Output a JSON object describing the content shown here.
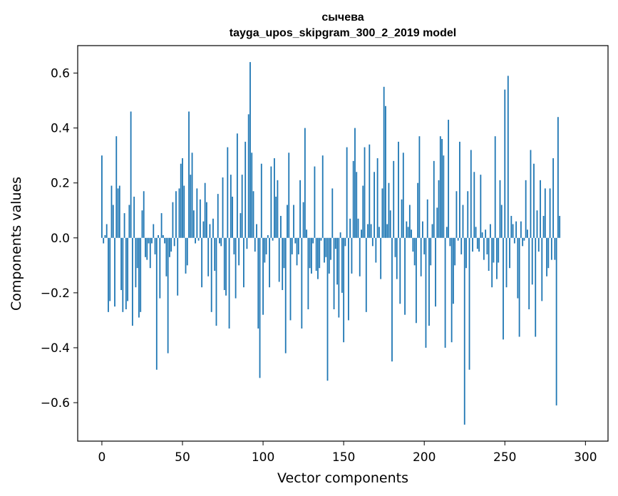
{
  "chart_data": {
    "type": "bar",
    "title": "сычева",
    "subtitle": "tayga_upos_skipgram_300_2_2019 model",
    "xlabel": "Vector components",
    "ylabel": "Components values",
    "xlim": [
      -15,
      314
    ],
    "ylim": [
      -0.74,
      0.7
    ],
    "xticks": [
      0,
      50,
      100,
      150,
      200,
      250,
      300
    ],
    "yticks": [
      -0.6,
      -0.4,
      -0.2,
      0.0,
      0.2,
      0.4,
      0.6
    ],
    "xtick_labels": [
      "0",
      "50",
      "100",
      "150",
      "200",
      "250",
      "300"
    ],
    "ytick_labels": [
      "−0.6",
      "−0.4",
      "−0.2",
      "0.0",
      "0.2",
      "0.4",
      "0.6"
    ],
    "bar_color": "#1f77b4",
    "grid": false,
    "values": [
      0.3,
      -0.02,
      0.01,
      0.05,
      -0.27,
      -0.23,
      0.19,
      0.12,
      -0.25,
      0.37,
      0.18,
      0.19,
      -0.19,
      -0.27,
      0.09,
      -0.26,
      -0.23,
      0.12,
      0.46,
      -0.32,
      0.15,
      -0.18,
      -0.11,
      -0.29,
      -0.27,
      0.1,
      0.17,
      -0.07,
      -0.08,
      -0.02,
      -0.11,
      -0.02,
      0.05,
      -0.06,
      -0.48,
      0.01,
      -0.22,
      0.09,
      0.01,
      -0.02,
      -0.14,
      -0.42,
      -0.07,
      -0.05,
      0.13,
      -0.03,
      0.17,
      -0.21,
      0.18,
      0.27,
      0.29,
      0.19,
      -0.13,
      -0.1,
      0.46,
      0.23,
      0.31,
      0.1,
      -0.02,
      0.18,
      -0.01,
      0.14,
      -0.18,
      0.06,
      0.2,
      0.13,
      -0.14,
      0.05,
      -0.27,
      0.07,
      -0.12,
      -0.32,
      0.16,
      -0.02,
      -0.03,
      0.22,
      -0.19,
      -0.21,
      0.33,
      -0.33,
      0.23,
      0.15,
      -0.06,
      -0.22,
      0.38,
      -0.1,
      0.09,
      0.23,
      -0.18,
      0.35,
      -0.04,
      0.45,
      0.64,
      0.31,
      0.17,
      -0.05,
      0.05,
      -0.33,
      -0.51,
      0.27,
      -0.28,
      -0.09,
      -0.06,
      0.01,
      -0.18,
      0.26,
      -0.01,
      0.29,
      0.15,
      0.21,
      -0.16,
      0.08,
      -0.19,
      -0.11,
      -0.42,
      0.12,
      0.31,
      -0.3,
      -0.06,
      0.12,
      -0.02,
      -0.1,
      -0.06,
      0.21,
      -0.33,
      0.13,
      0.4,
      0.03,
      -0.26,
      -0.11,
      -0.13,
      -0.02,
      0.26,
      -0.12,
      -0.15,
      -0.11,
      -0.01,
      0.3,
      -0.09,
      -0.07,
      -0.52,
      -0.13,
      -0.08,
      0.18,
      -0.26,
      -0.04,
      -0.17,
      -0.29,
      0.02,
      -0.2,
      -0.38,
      -0.03,
      0.33,
      -0.3,
      0.07,
      -0.13,
      0.28,
      0.4,
      0.24,
      0.07,
      -0.14,
      0.03,
      0.19,
      0.33,
      -0.27,
      0.05,
      0.34,
      0.05,
      -0.03,
      0.24,
      -0.09,
      0.29,
      0.04,
      -0.15,
      0.18,
      0.55,
      0.48,
      0.05,
      0.2,
      0.1,
      -0.45,
      0.28,
      -0.07,
      -0.15,
      0.35,
      -0.24,
      0.14,
      0.31,
      -0.28,
      0.06,
      0.04,
      0.12,
      0.03,
      -0.05,
      -0.1,
      -0.31,
      0.2,
      0.37,
      -0.14,
      0.06,
      -0.06,
      -0.4,
      0.14,
      -0.32,
      -0.1,
      0.05,
      0.28,
      -0.25,
      0.11,
      0.21,
      0.37,
      0.36,
      0.3,
      -0.4,
      0.04,
      0.43,
      -0.03,
      -0.38,
      -0.24,
      -0.1,
      0.17,
      -0.01,
      0.35,
      -0.06,
      0.12,
      -0.68,
      -0.11,
      0.17,
      -0.48,
      0.32,
      -0.05,
      0.24,
      0.04,
      -0.04,
      -0.05,
      0.23,
      0.02,
      -0.08,
      0.03,
      -0.06,
      -0.12,
      0.05,
      -0.18,
      -0.09,
      0.37,
      -0.15,
      -0.09,
      0.21,
      0.12,
      -0.37,
      0.54,
      -0.18,
      0.59,
      -0.11,
      0.08,
      0.05,
      -0.02,
      0.06,
      -0.22,
      -0.36,
      0.06,
      -0.03,
      -0.01,
      0.21,
      0.03,
      -0.26,
      0.32,
      -0.17,
      0.27,
      -0.36,
      0.1,
      -0.05,
      0.21,
      -0.23,
      0.08,
      0.18,
      -0.14,
      -0.11,
      0.18,
      -0.08,
      0.29,
      -0.08,
      -0.61,
      0.44,
      0.08
    ]
  }
}
